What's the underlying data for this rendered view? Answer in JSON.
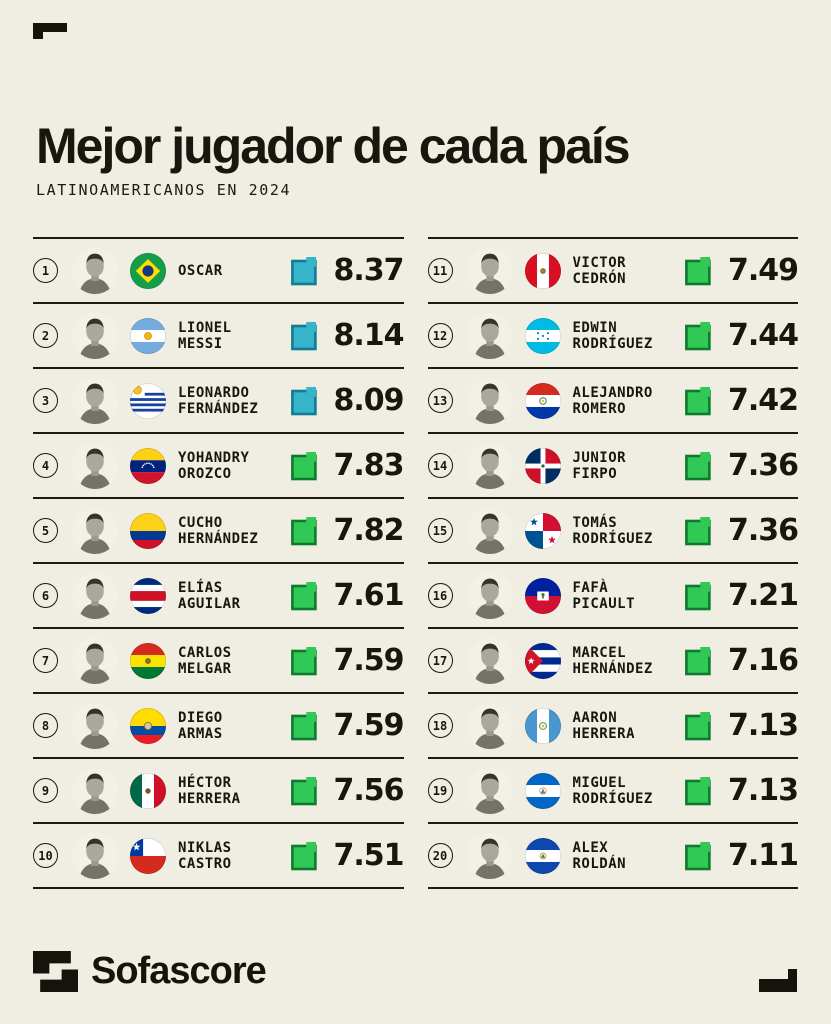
{
  "page": {
    "background": "#F0EEE2",
    "ink": "#17170F"
  },
  "header": {
    "title": "Mejor jugador de cada país",
    "subtitle": "LATINOAMERICANOS EN 2024"
  },
  "footer": {
    "brand": "Sofascore",
    "logo_icon": "sofascore-logo-icon"
  },
  "rating_tiers": {
    "excellent": {
      "fill": "#35B4CB",
      "border": "#117B93"
    },
    "good": {
      "fill": "#31C956",
      "border": "#0D7A2E"
    }
  },
  "players": [
    {
      "rank": 1,
      "name_lines": [
        "OSCAR"
      ],
      "flag": "brazil",
      "rating": "8.37",
      "tier": "excellent"
    },
    {
      "rank": 2,
      "name_lines": [
        "LIONEL",
        "MESSI"
      ],
      "flag": "argentina",
      "rating": "8.14",
      "tier": "excellent"
    },
    {
      "rank": 3,
      "name_lines": [
        "LEONARDO",
        "FERNÁNDEZ"
      ],
      "flag": "uruguay",
      "rating": "8.09",
      "tier": "excellent"
    },
    {
      "rank": 4,
      "name_lines": [
        "YOHANDRY",
        "OROZCO"
      ],
      "flag": "venezuela",
      "rating": "7.83",
      "tier": "good"
    },
    {
      "rank": 5,
      "name_lines": [
        "CUCHO",
        "HERNÁNDEZ"
      ],
      "flag": "colombia",
      "rating": "7.82",
      "tier": "good"
    },
    {
      "rank": 6,
      "name_lines": [
        "ELÍAS",
        "AGUILAR"
      ],
      "flag": "costa-rica",
      "rating": "7.61",
      "tier": "good"
    },
    {
      "rank": 7,
      "name_lines": [
        "CARLOS",
        "MELGAR"
      ],
      "flag": "bolivia",
      "rating": "7.59",
      "tier": "good"
    },
    {
      "rank": 8,
      "name_lines": [
        "DIEGO",
        "ARMAS"
      ],
      "flag": "ecuador",
      "rating": "7.59",
      "tier": "good"
    },
    {
      "rank": 9,
      "name_lines": [
        "HÉCTOR",
        "HERRERA"
      ],
      "flag": "mexico",
      "rating": "7.56",
      "tier": "good"
    },
    {
      "rank": 10,
      "name_lines": [
        "NIKLAS",
        "CASTRO"
      ],
      "flag": "chile",
      "rating": "7.51",
      "tier": "good"
    },
    {
      "rank": 11,
      "name_lines": [
        "VICTOR",
        "CEDRÓN"
      ],
      "flag": "peru",
      "rating": "7.49",
      "tier": "good"
    },
    {
      "rank": 12,
      "name_lines": [
        "EDWIN",
        "RODRÍGUEZ"
      ],
      "flag": "honduras",
      "rating": "7.44",
      "tier": "good"
    },
    {
      "rank": 13,
      "name_lines": [
        "ALEJANDRO",
        "ROMERO"
      ],
      "flag": "paraguay",
      "rating": "7.42",
      "tier": "good"
    },
    {
      "rank": 14,
      "name_lines": [
        "JUNIOR",
        "FIRPO"
      ],
      "flag": "dominican-republic",
      "rating": "7.36",
      "tier": "good"
    },
    {
      "rank": 15,
      "name_lines": [
        "TOMÁS",
        "RODRÍGUEZ"
      ],
      "flag": "panama",
      "rating": "7.36",
      "tier": "good"
    },
    {
      "rank": 16,
      "name_lines": [
        "FAFÀ",
        "PICAULT"
      ],
      "flag": "haiti",
      "rating": "7.21",
      "tier": "good"
    },
    {
      "rank": 17,
      "name_lines": [
        "MARCEL",
        "HERNÁNDEZ"
      ],
      "flag": "cuba",
      "rating": "7.16",
      "tier": "good"
    },
    {
      "rank": 18,
      "name_lines": [
        "AARON",
        "HERRERA"
      ],
      "flag": "guatemala",
      "rating": "7.13",
      "tier": "good"
    },
    {
      "rank": 19,
      "name_lines": [
        "MIGUEL",
        "RODRÍGUEZ"
      ],
      "flag": "nicaragua",
      "rating": "7.13",
      "tier": "good"
    },
    {
      "rank": 20,
      "name_lines": [
        "ALEX",
        "ROLDÁN"
      ],
      "flag": "el-salvador",
      "rating": "7.11",
      "tier": "good"
    }
  ]
}
